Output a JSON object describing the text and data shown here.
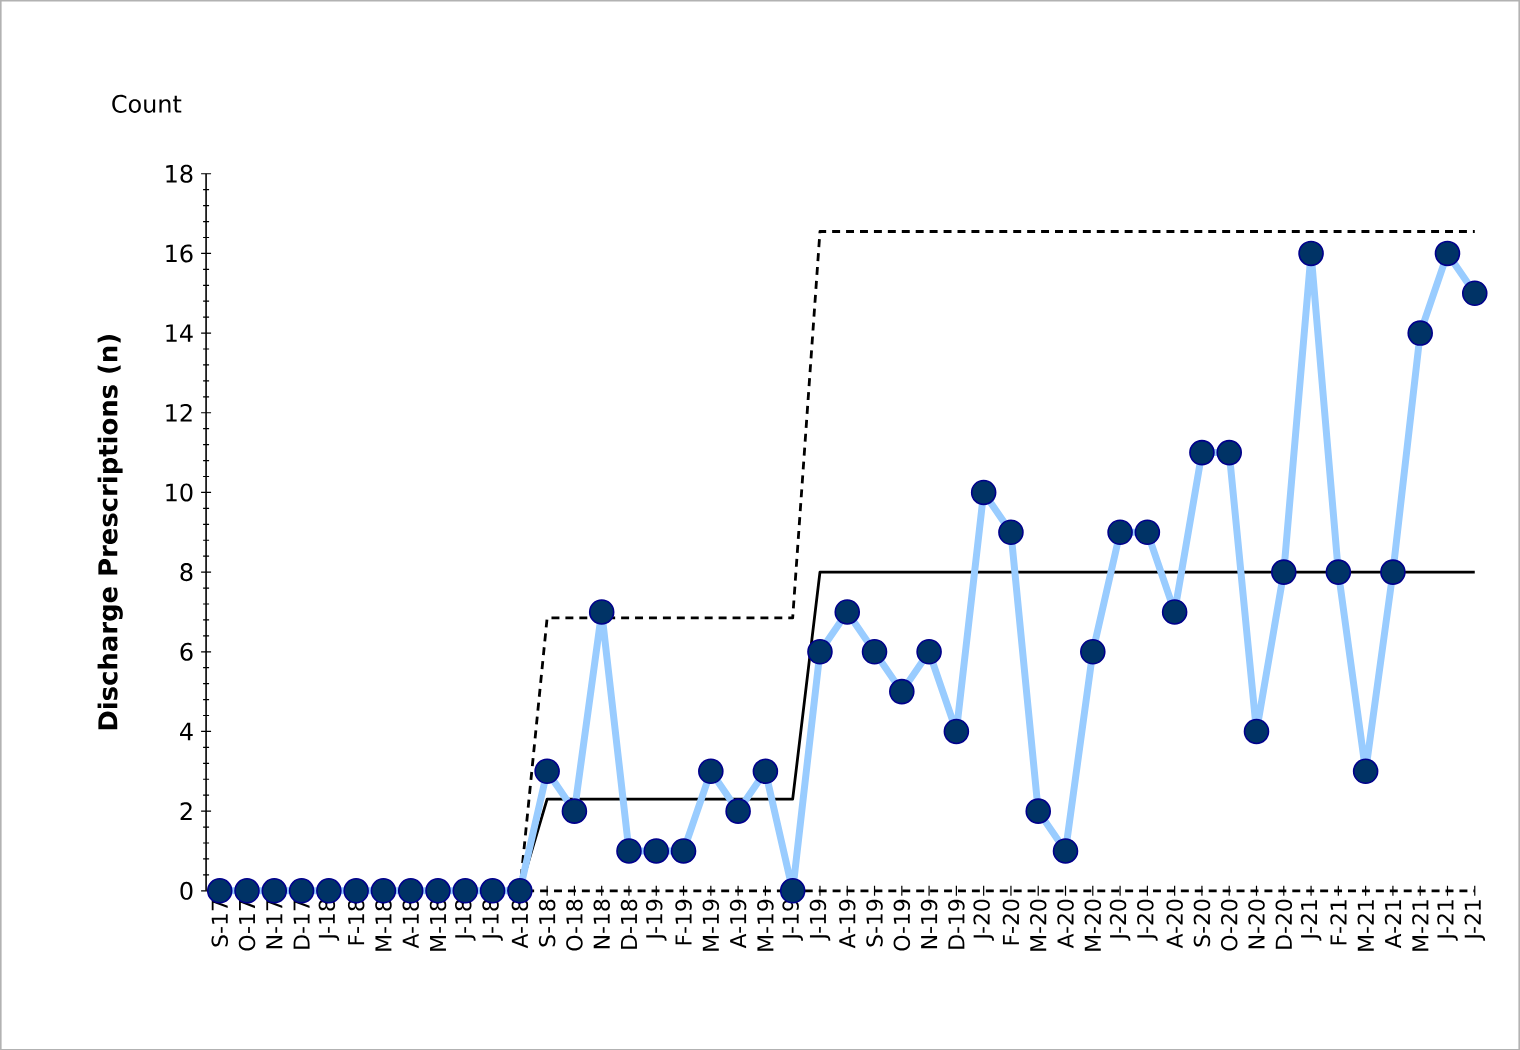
{
  "chart_data": {
    "type": "line",
    "title": "Count",
    "ylabel": "Discharge  Prescriptions (n)",
    "categories": [
      "S-17",
      "O-17",
      "N-17",
      "D-17",
      "J-18",
      "F-18",
      "M-18",
      "A-18",
      "M-18",
      "J-18",
      "J-18",
      "A-18",
      "S-18",
      "O-18",
      "N-18",
      "D-18",
      "J-19",
      "F-19",
      "M-19",
      "A-19",
      "M-19",
      "J-19",
      "J-19",
      "A-19",
      "S-19",
      "O-19",
      "N-19",
      "D-19",
      "J-20",
      "F-20",
      "M-20",
      "A-20",
      "M-20",
      "J-20",
      "J-20",
      "A-20",
      "S-20",
      "O-20",
      "N-20",
      "D-20",
      "J-21",
      "F-21",
      "M-21",
      "A-21",
      "M-21",
      "J-21",
      "J-21"
    ],
    "series": [
      {
        "color": "#99ccff",
        "marker": "circle",
        "line_style": "solid",
        "values": [
          0,
          0,
          0,
          0,
          0,
          0,
          0,
          0,
          0,
          0,
          0,
          0,
          3,
          2,
          7,
          1,
          1,
          1,
          3,
          2,
          3,
          0,
          6,
          7,
          6,
          5,
          6,
          4,
          10,
          9,
          2,
          1,
          6,
          9,
          9,
          7,
          11,
          11,
          4,
          8,
          16,
          8,
          3,
          8,
          14,
          16,
          15
        ]
      },
      {
        "color": "#000000",
        "marker": "none",
        "line_style": "solid",
        "values": [
          null,
          null,
          null,
          null,
          null,
          null,
          null,
          null,
          null,
          null,
          null,
          0,
          2.3,
          2.3,
          2.3,
          2.3,
          2.3,
          2.3,
          2.3,
          2.3,
          2.3,
          2.3,
          8,
          8,
          8,
          8,
          8,
          8,
          8,
          8,
          8,
          8,
          8,
          8,
          8,
          8,
          8,
          8,
          8,
          8,
          8,
          8,
          8,
          8,
          8,
          8,
          8
        ]
      },
      {
        "color": "#000000",
        "marker": "none",
        "line_style": "dashed",
        "values": [
          null,
          null,
          null,
          null,
          null,
          null,
          null,
          null,
          null,
          null,
          null,
          0,
          6.85,
          6.85,
          6.85,
          6.85,
          6.85,
          6.85,
          6.85,
          6.85,
          6.85,
          6.85,
          16.55,
          16.55,
          16.55,
          16.55,
          16.55,
          16.55,
          16.55,
          16.55,
          16.55,
          16.55,
          16.55,
          16.55,
          16.55,
          16.55,
          16.55,
          16.55,
          16.55,
          16.55,
          16.55,
          16.55,
          16.55,
          16.55,
          16.55,
          16.55,
          16.55
        ]
      },
      {
        "color": "#000000",
        "marker": "none",
        "line_style": "dashed",
        "values": [
          0,
          0,
          0,
          0,
          0,
          0,
          0,
          0,
          0,
          0,
          0,
          0,
          0,
          0,
          0,
          0,
          0,
          0,
          0,
          0,
          0,
          0,
          0,
          0,
          0,
          0,
          0,
          0,
          0,
          0,
          0,
          0,
          0,
          0,
          0,
          0,
          0,
          0,
          0,
          0,
          0,
          0,
          0,
          0,
          0,
          0,
          0
        ]
      }
    ],
    "ylim": [
      0,
      18
    ],
    "yticks": [
      0,
      2,
      4,
      6,
      8,
      10,
      12,
      14,
      16,
      18
    ],
    "grid": false
  }
}
